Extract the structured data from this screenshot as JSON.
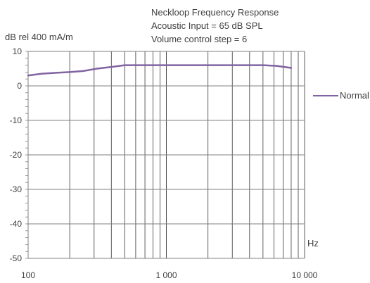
{
  "chart_data": {
    "type": "line",
    "title": [
      "Neckloop Frequency Response",
      "Acoustic Input = 65 dB SPL",
      "Volume control step = 6"
    ],
    "ylabel": "dB rel 400 mA/m",
    "xunit": "Hz",
    "xscale": "log",
    "xlim": [
      100,
      10000
    ],
    "ylim": [
      -50,
      10
    ],
    "xticks": [
      100,
      1000,
      10000
    ],
    "xtick_labels": [
      "100",
      "1 000",
      "10 000"
    ],
    "yticks": [
      10,
      0,
      -10,
      -20,
      -30,
      -40,
      -50
    ],
    "ytick_labels": [
      "10",
      "0",
      "-10",
      "-20",
      "-30",
      "-40",
      "-50"
    ],
    "grid": true,
    "legend_position": "right",
    "series": [
      {
        "name": "Normal",
        "color": "#8064a2",
        "x": [
          100,
          125,
          160,
          200,
          250,
          315,
          400,
          500,
          630,
          800,
          1000,
          1250,
          1600,
          2000,
          2500,
          3150,
          4000,
          5000,
          6300,
          8000
        ],
        "y": [
          3.0,
          3.5,
          3.8,
          4.0,
          4.3,
          5.0,
          5.5,
          6.0,
          6.0,
          6.0,
          6.0,
          6.0,
          6.0,
          6.0,
          6.0,
          6.0,
          6.0,
          6.0,
          5.8,
          5.2
        ]
      }
    ]
  }
}
